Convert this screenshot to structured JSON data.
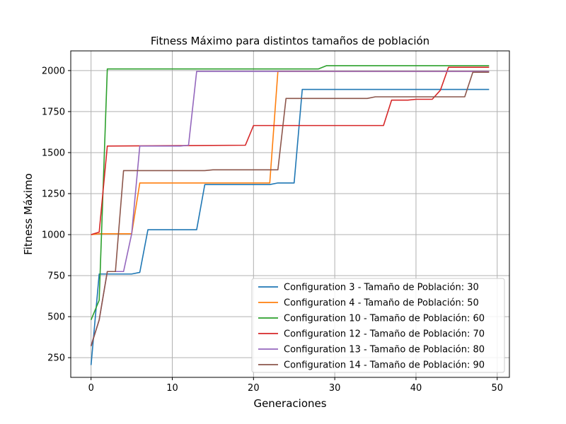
{
  "chart_data": {
    "type": "line",
    "title": "Fitness Máximo para distintos tamaños de población",
    "xlabel": "Generaciones",
    "ylabel": "Fitness Máximo",
    "xlim": [
      -2.5,
      51.5
    ],
    "ylim": [
      130,
      2120
    ],
    "x_ticks": [
      0,
      10,
      20,
      30,
      40,
      50
    ],
    "y_ticks": [
      250,
      500,
      750,
      1000,
      1250,
      1500,
      1750,
      2000
    ],
    "grid": true,
    "legend_position": "lower-right",
    "series": [
      {
        "name": "Configuration 3 - Tamaño de Población: 30",
        "color": "#1f77b4",
        "points": [
          [
            0,
            205
          ],
          [
            1,
            760
          ],
          [
            5,
            760
          ],
          [
            6,
            770
          ],
          [
            7,
            1030
          ],
          [
            13,
            1030
          ],
          [
            14,
            1305
          ],
          [
            22,
            1305
          ],
          [
            23,
            1315
          ],
          [
            25,
            1315
          ],
          [
            26,
            1885
          ],
          [
            49,
            1885
          ]
        ]
      },
      {
        "name": "Configuration 4 - Tamaño de Población: 50",
        "color": "#ff7f0e",
        "points": [
          [
            0,
            1000
          ],
          [
            1,
            1005
          ],
          [
            5,
            1005
          ],
          [
            6,
            1315
          ],
          [
            22,
            1315
          ],
          [
            23,
            1995
          ],
          [
            49,
            1995
          ]
        ]
      },
      {
        "name": "Configuration 10 - Tamaño de Población: 60",
        "color": "#2ca02c",
        "points": [
          [
            0,
            480
          ],
          [
            1,
            600
          ],
          [
            2,
            2010
          ],
          [
            28,
            2010
          ],
          [
            29,
            2030
          ],
          [
            49,
            2030
          ]
        ]
      },
      {
        "name": "Configuration 12 - Tamaño de Población: 70",
        "color": "#d62728",
        "points": [
          [
            0,
            1000
          ],
          [
            1,
            1015
          ],
          [
            2,
            1540
          ],
          [
            19,
            1545
          ],
          [
            20,
            1665
          ],
          [
            36,
            1665
          ],
          [
            37,
            1820
          ],
          [
            39,
            1820
          ],
          [
            40,
            1825
          ],
          [
            42,
            1825
          ],
          [
            43,
            1880
          ],
          [
            44,
            2020
          ],
          [
            48,
            2020
          ],
          [
            49,
            2020
          ]
        ]
      },
      {
        "name": "Configuration 13 - Tamaño de Población: 80",
        "color": "#9467bd",
        "points": [
          [
            0,
            325
          ],
          [
            1,
            480
          ],
          [
            2,
            775
          ],
          [
            4,
            775
          ],
          [
            5,
            1005
          ],
          [
            6,
            1540
          ],
          [
            11,
            1540
          ],
          [
            12,
            1545
          ],
          [
            13,
            1995
          ],
          [
            49,
            1995
          ]
        ]
      },
      {
        "name": "Configuration 14 - Tamaño de Población: 90",
        "color": "#8c564b",
        "points": [
          [
            0,
            320
          ],
          [
            1,
            480
          ],
          [
            2,
            775
          ],
          [
            3,
            775
          ],
          [
            4,
            1390
          ],
          [
            14,
            1390
          ],
          [
            15,
            1395
          ],
          [
            23,
            1395
          ],
          [
            24,
            1830
          ],
          [
            34,
            1830
          ],
          [
            35,
            1840
          ],
          [
            46,
            1840
          ],
          [
            47,
            1990
          ],
          [
            49,
            1990
          ]
        ]
      }
    ]
  }
}
